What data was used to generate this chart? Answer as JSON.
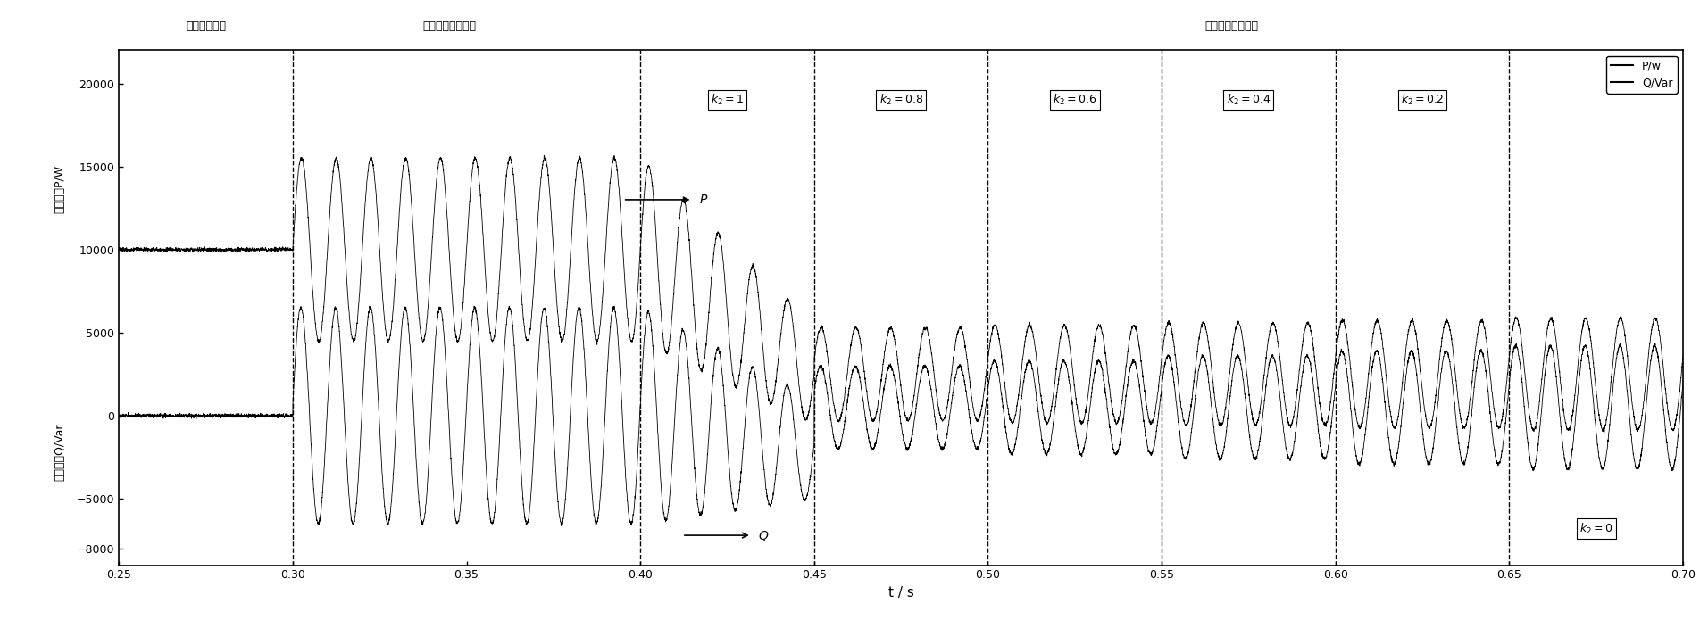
{
  "xlabel": "t / s",
  "ylabel_top": "有功功率P/W",
  "ylabel_bottom": "无功功率Q/Var",
  "xlim": [
    0.25,
    0.7
  ],
  "ylim": [
    -9000,
    22000
  ],
  "xticks": [
    0.25,
    0.3,
    0.35,
    0.4,
    0.45,
    0.5,
    0.55,
    0.6,
    0.65,
    0.7
  ],
  "yticks": [
    -8000,
    -5000,
    0,
    5000,
    10000,
    15000,
    20000
  ],
  "vlines": [
    0.3,
    0.4,
    0.45,
    0.5,
    0.55,
    0.6,
    0.65
  ],
  "label_elec": "电网正常运行",
  "label_active": "有功参考电流给定",
  "label_reactive": "无功参考电流给定",
  "legend_p": "P/w",
  "legend_q": "Q/Var",
  "background_color": "#ffffff",
  "line_color": "#000000"
}
